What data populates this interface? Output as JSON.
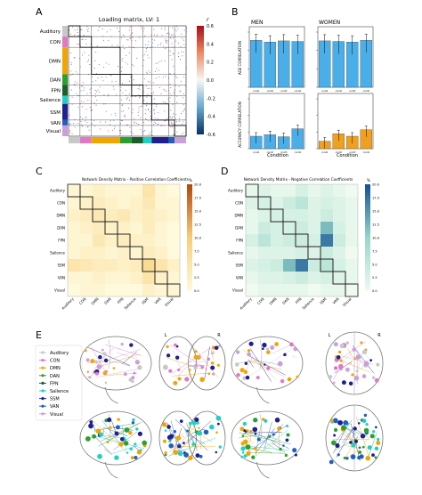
{
  "panels": {
    "A": "A",
    "B": "B",
    "C": "C",
    "D": "D",
    "E": "E"
  },
  "panel_a": {
    "title": "Loading matrix, LV:  1",
    "networks": [
      "Auditory",
      "CON",
      "DMN",
      "DAN",
      "FPN",
      "Salience",
      "SSM",
      "VAN",
      "Visual"
    ],
    "network_colors": [
      "#c8c8c8",
      "#e377c2",
      "#f0a500",
      "#2ca02c",
      "#1a5e2e",
      "#20d0c0",
      "#1f1f8f",
      "#1f5fbf",
      "#c9a0dc"
    ],
    "colorbar_label": "r",
    "colorbar_ticks": [
      "0.6",
      "0.4",
      "0.2",
      "0.0",
      "-0.2",
      "-0.4",
      "-0.6"
    ]
  },
  "panel_b": {
    "men_label": "MEN",
    "women_label": "WOMEN",
    "age_ylabel": "AGE CORRELATION",
    "acc_ylabel": "ACCURACY CORRELATION",
    "xlabel": "Condition",
    "conditions": [
      "cond1",
      "cond2",
      "cond3",
      "cond4"
    ],
    "bar_color_blue": "#4aaee8",
    "bar_color_orange": "#f0a020"
  },
  "chart_data": [
    {
      "type": "bar",
      "title": "MEN",
      "categories": [
        "cond1",
        "cond2",
        "cond3",
        "cond4"
      ],
      "values": [
        0.85,
        0.82,
        0.84,
        0.83
      ],
      "ylabel": "AGE CORRELATION"
    },
    {
      "type": "bar",
      "title": "WOMEN",
      "categories": [
        "cond1",
        "cond2",
        "cond3",
        "cond4"
      ],
      "values": [
        0.84,
        0.83,
        0.82,
        0.85
      ]
    },
    {
      "type": "bar",
      "categories": [
        "cond1",
        "cond2",
        "cond3",
        "cond4"
      ],
      "values": [
        0.25,
        0.28,
        0.24,
        0.4
      ],
      "ylabel": "ACCURACY CORRELATION",
      "xlabel": "Condition"
    },
    {
      "type": "bar",
      "categories": [
        "cond1",
        "cond2",
        "cond3",
        "cond4"
      ],
      "values": [
        0.15,
        0.3,
        0.25,
        0.38
      ],
      "xlabel": "Condition"
    },
    {
      "type": "heatmap",
      "title": "Network Density Matrix - Positive Correlation Coefficients",
      "row_labels": [
        "Auditory",
        "CON",
        "DMN",
        "DAN",
        "FPN",
        "Salience",
        "SSM",
        "VAN",
        "Visual"
      ],
      "col_labels": [
        "Auditory",
        "CON",
        "DMN",
        "DAN",
        "FPN",
        "Salience",
        "SSM",
        "VAN",
        "Visual"
      ],
      "colorbar_label": "%",
      "colorbar_ticks": [
        "20.0",
        "17.5",
        "15.0",
        "12.5",
        "10.0",
        "7.5",
        "5.0",
        "2.5",
        "0.0"
      ],
      "values": [
        [
          1,
          1,
          2,
          1,
          1,
          1,
          5,
          1,
          0
        ],
        [
          1,
          2,
          3,
          2,
          1,
          2,
          4,
          1,
          1
        ],
        [
          2,
          3,
          4,
          3,
          4,
          2,
          3,
          2,
          1
        ],
        [
          1,
          2,
          3,
          2,
          2,
          1,
          3,
          1,
          0
        ],
        [
          1,
          1,
          4,
          2,
          3,
          2,
          2,
          1,
          0
        ],
        [
          1,
          2,
          2,
          1,
          2,
          1,
          3,
          2,
          0
        ],
        [
          5,
          4,
          3,
          3,
          2,
          3,
          7,
          5,
          2
        ],
        [
          1,
          1,
          2,
          1,
          1,
          2,
          5,
          2,
          1
        ],
        [
          0,
          1,
          1,
          0,
          0,
          0,
          2,
          1,
          1
        ]
      ]
    },
    {
      "type": "heatmap",
      "title": "Network Density Matrix - Negative Correlation Coefficients",
      "row_labels": [
        "Auditory",
        "CON",
        "DMN",
        "DAN",
        "FPN",
        "Salience",
        "SSM",
        "VAN",
        "Visual"
      ],
      "col_labels": [
        "Auditory",
        "CON",
        "DMN",
        "DAN",
        "FPN",
        "Salience",
        "SSM",
        "VAN",
        "Visual"
      ],
      "colorbar_label": "%",
      "colorbar_ticks": [
        "20.0",
        "17.5",
        "15.0",
        "12.5",
        "10.0",
        "7.5",
        "5.0",
        "2.5",
        "0.0"
      ],
      "values": [
        [
          1,
          2,
          1,
          1,
          3,
          1,
          2,
          1,
          0
        ],
        [
          2,
          3,
          2,
          4,
          6,
          2,
          3,
          2,
          1
        ],
        [
          1,
          2,
          3,
          3,
          3,
          2,
          4,
          2,
          1
        ],
        [
          1,
          4,
          3,
          3,
          4,
          2,
          12,
          3,
          1
        ],
        [
          3,
          6,
          3,
          4,
          4,
          3,
          17,
          4,
          1
        ],
        [
          1,
          2,
          2,
          2,
          3,
          2,
          4,
          2,
          0
        ],
        [
          2,
          3,
          4,
          12,
          17,
          4,
          6,
          3,
          1
        ],
        [
          1,
          2,
          2,
          3,
          4,
          2,
          3,
          2,
          1
        ],
        [
          0,
          1,
          1,
          1,
          1,
          0,
          1,
          1,
          0
        ]
      ]
    }
  ],
  "panel_c": {
    "title": "Network Density Matrix - Positive Correlation Coefficients",
    "colorbar_label": "%"
  },
  "panel_d": {
    "title": "Network Density Matrix - Negative Correlation Coefficients",
    "colorbar_label": "%"
  },
  "panel_e": {
    "legend": [
      {
        "label": "Auditory",
        "color": "#c8c8c8"
      },
      {
        "label": "CON",
        "color": "#e377c2"
      },
      {
        "label": "DMN",
        "color": "#f0a500"
      },
      {
        "label": "DAN",
        "color": "#2ca02c"
      },
      {
        "label": "FPN",
        "color": "#1a5e2e"
      },
      {
        "label": "Salience",
        "color": "#20d0c0"
      },
      {
        "label": "SSM",
        "color": "#1f1f8f"
      },
      {
        "label": "VAN",
        "color": "#1f5fbf"
      },
      {
        "label": "Visual",
        "color": "#c9a0dc"
      }
    ],
    "lr_labels": [
      "L",
      "R",
      "L",
      "R"
    ]
  }
}
